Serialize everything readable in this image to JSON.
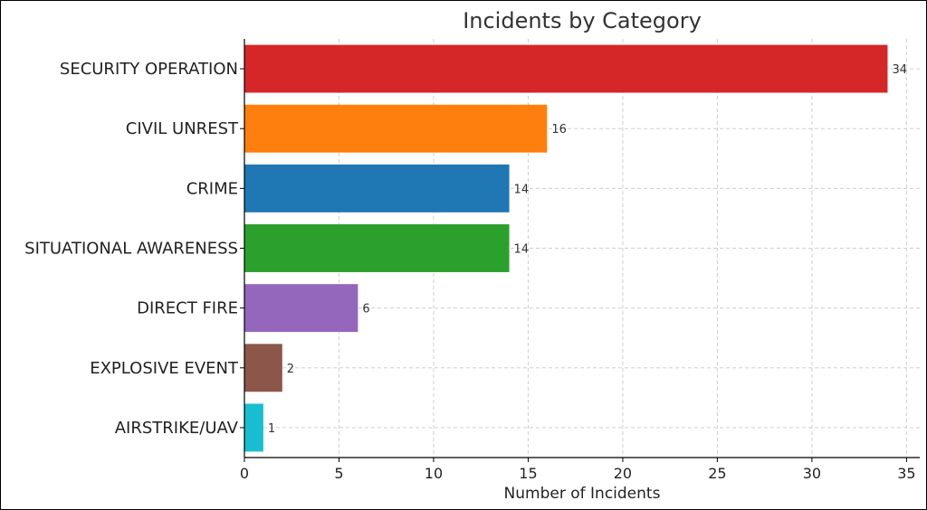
{
  "chart_data": {
    "type": "bar",
    "orientation": "horizontal",
    "title": "Incidents by Category",
    "xlabel": "Number of Incidents",
    "ylabel": "",
    "categories": [
      "SECURITY OPERATION",
      "CIVIL UNREST",
      "CRIME",
      "SITUATIONAL AWARENESS",
      "DIRECT FIRE",
      "EXPLOSIVE EVENT",
      "AIRSTRIKE/UAV"
    ],
    "values": [
      34,
      16,
      14,
      14,
      6,
      2,
      1
    ],
    "colors": [
      "#d62728",
      "#ff7f0e",
      "#1f77b4",
      "#2ca02c",
      "#9467bd",
      "#8c564b",
      "#17becf"
    ],
    "xlim": [
      0,
      35.7
    ],
    "xticks": [
      0,
      5,
      10,
      15,
      20,
      25,
      30,
      35
    ],
    "grid": true,
    "data_labels": true
  }
}
